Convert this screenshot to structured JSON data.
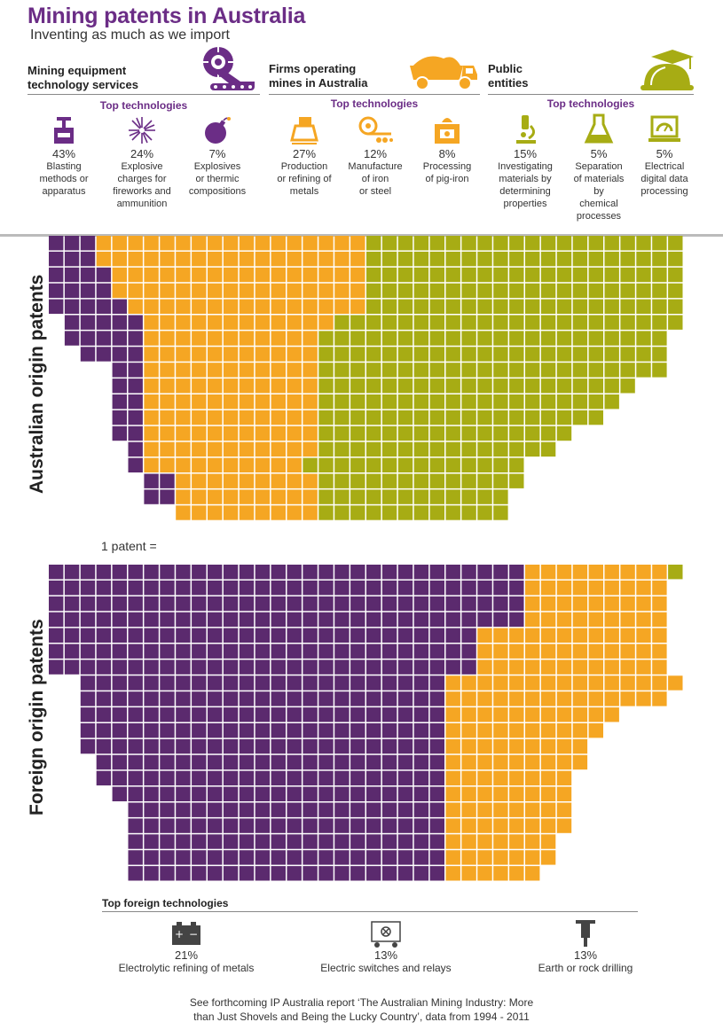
{
  "header": {
    "title": "Mining patents in Australia",
    "subtitle": "Inventing as much as we import"
  },
  "groups": [
    {
      "name_line1": "Mining equipment",
      "name_line2": "technology services",
      "icon": "mining-machine-icon",
      "top_label": "Top technologies",
      "color": "#5b2a6e",
      "techs": [
        {
          "pct": "43%",
          "label": [
            "Blasting",
            "methods or",
            "apparatus"
          ],
          "icon": "detonator-icon"
        },
        {
          "pct": "24%",
          "label": [
            "Explosive",
            "charges for",
            "fireworks and",
            "ammunition"
          ],
          "icon": "firework-icon"
        },
        {
          "pct": "7%",
          "label": [
            "Explosives",
            "or thermic",
            "compositions"
          ],
          "icon": "bomb-icon"
        }
      ]
    },
    {
      "name_line1": "Firms operating",
      "name_line2": "mines in Australia",
      "icon": "dump-truck-icon",
      "top_label": "Top technologies",
      "color": "#f5a623",
      "techs": [
        {
          "pct": "27%",
          "label": [
            "Production",
            "or refining of",
            "metals"
          ],
          "icon": "ingot-icon"
        },
        {
          "pct": "12%",
          "label": [
            "Manufacture",
            "of iron",
            "or steel"
          ],
          "icon": "steel-coil-icon"
        },
        {
          "pct": "8%",
          "label": [
            "Processing",
            "of pig-iron"
          ],
          "icon": "furnace-icon"
        }
      ]
    },
    {
      "name_line1": "Public",
      "name_line2": "entities",
      "icon": "helmet-graduation-icon",
      "top_label": "Top technologies",
      "color": "#a7ac14",
      "techs": [
        {
          "pct": "15%",
          "label": [
            "Investigating",
            "materials by",
            "determining",
            "properties"
          ],
          "icon": "microscope-icon"
        },
        {
          "pct": "5%",
          "label": [
            "Separation",
            "of materials",
            "by",
            "chemical",
            "processes"
          ],
          "icon": "flask-icon"
        },
        {
          "pct": "5%",
          "label": [
            "Electrical",
            "digital data",
            "processing"
          ],
          "icon": "laptop-gauge-icon"
        }
      ]
    }
  ],
  "one_patent_label": "1 patent =",
  "colors": {
    "purple": "#5b2a6e",
    "orange": "#f5a623",
    "olive": "#a7ac14",
    "accent": "#6b2d86"
  },
  "chart_data": [
    {
      "type": "waffle",
      "title": "Australian origin patents",
      "unit": "1 patent = 1 square",
      "categories": [
        "Mining equipment technology services",
        "Firms operating mines in Australia",
        "Public entities"
      ],
      "colors": [
        "#5b2a6e",
        "#f5a623",
        "#a7ac14"
      ],
      "rows": [
        [
          3,
          17,
          20
        ],
        [
          3,
          17,
          20
        ],
        [
          4,
          16,
          20
        ],
        [
          4,
          16,
          20
        ],
        [
          5,
          15,
          20
        ],
        [
          5,
          12,
          22
        ],
        [
          5,
          11,
          22
        ],
        [
          4,
          11,
          22
        ],
        [
          2,
          11,
          22
        ],
        [
          2,
          11,
          20
        ],
        [
          2,
          11,
          19
        ],
        [
          2,
          11,
          18
        ],
        [
          2,
          11,
          16
        ],
        [
          1,
          11,
          15
        ],
        [
          1,
          10,
          14
        ],
        [
          2,
          9,
          13
        ],
        [
          2,
          9,
          12
        ],
        [
          0,
          9,
          12
        ]
      ]
    },
    {
      "type": "waffle",
      "title": "Foreign origin patents",
      "unit": "1 patent = 1 square",
      "categories": [
        "Mining equipment technology services",
        "Firms operating mines in Australia",
        "Public entities"
      ],
      "colors": [
        "#5b2a6e",
        "#f5a623",
        "#a7ac14"
      ],
      "rows": [
        [
          30,
          9,
          1
        ],
        [
          30,
          9,
          0
        ],
        [
          30,
          9,
          0
        ],
        [
          30,
          9,
          0
        ],
        [
          27,
          12,
          0
        ],
        [
          27,
          12,
          0
        ],
        [
          27,
          12,
          0
        ],
        [
          23,
          15,
          0
        ],
        [
          23,
          14,
          0
        ],
        [
          23,
          11,
          0
        ],
        [
          23,
          10,
          0
        ],
        [
          23,
          9,
          0
        ],
        [
          22,
          9,
          0
        ],
        [
          22,
          8,
          0
        ],
        [
          21,
          8,
          0
        ],
        [
          20,
          8,
          0
        ],
        [
          20,
          8,
          0
        ],
        [
          20,
          7,
          0
        ],
        [
          20,
          7,
          0
        ],
        [
          20,
          6,
          0
        ]
      ]
    }
  ],
  "foreign": {
    "top_label": "Top foreign technologies",
    "techs": [
      {
        "pct": "21%",
        "label": "Electrolytic refining of metals",
        "icon": "battery-icon"
      },
      {
        "pct": "13%",
        "label": "Electric switches and relays",
        "icon": "switch-circuit-icon"
      },
      {
        "pct": "13%",
        "label": "Earth or rock drilling",
        "icon": "jackhammer-icon"
      }
    ]
  },
  "note": {
    "line1": "See forthcoming IP Australia report ‘The Australian Mining Industry: More",
    "line2": "than Just Shovels and Being the Lucky Country’, data from 1994 - 2011"
  }
}
